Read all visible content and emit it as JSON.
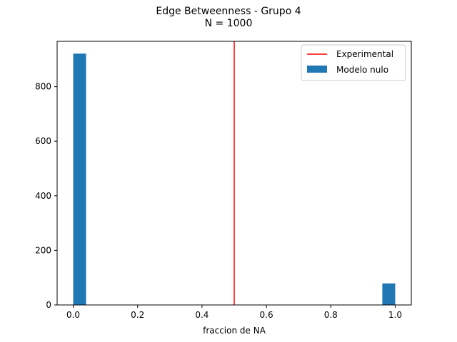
{
  "chart_data": {
    "type": "bar",
    "title": "Edge Betweenness - Grupo 4",
    "subtitle": "N = 1000",
    "xlabel": "fraccion de NA",
    "ylabel": "",
    "xlim": [
      -0.05,
      1.05
    ],
    "ylim": [
      0,
      966
    ],
    "xticks": [
      "0.0",
      "0.2",
      "0.4",
      "0.6",
      "0.8",
      "1.0"
    ],
    "xtick_values": [
      0.0,
      0.2,
      0.4,
      0.6,
      0.8,
      1.0
    ],
    "yticks": [
      "0",
      "200",
      "400",
      "600",
      "800"
    ],
    "ytick_values": [
      0,
      200,
      400,
      600,
      800
    ],
    "histogram": {
      "name": "Modelo nulo",
      "color": "#1f77b4",
      "bins": [
        {
          "x0": 0.0,
          "x1": 0.04,
          "value": 921
        },
        {
          "x0": 0.96,
          "x1": 1.0,
          "value": 79
        }
      ]
    },
    "vline": {
      "name": "Experimental",
      "x": 0.5,
      "color": "#ff0000"
    },
    "legend_position": "top-right",
    "grid": false
  }
}
